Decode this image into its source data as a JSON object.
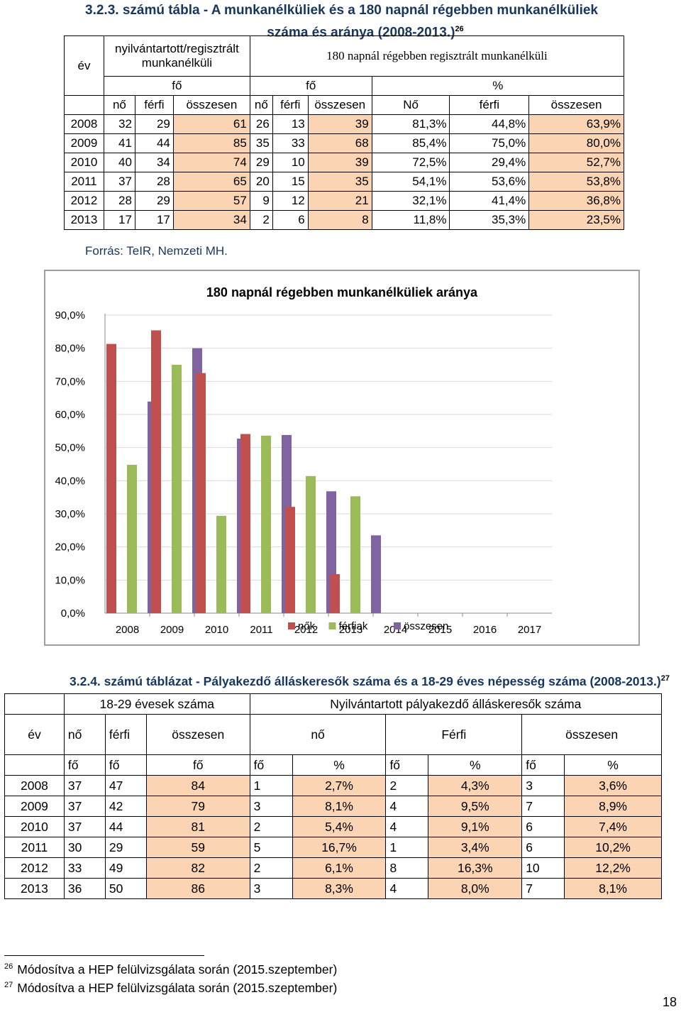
{
  "table1": {
    "title_line1": "3.2.3. számú tábla - A munkanélküliek és a 180 napnál régebben munkanélküliek",
    "title_line2": "száma és aránya (2008-2013.)",
    "title_footnote": "26",
    "col_year": "év",
    "group1": "nyilvántartott/regisztrált munkanélküli",
    "group2": "180 napnál régebben regisztrált munkanélküli",
    "unit_fo1": "fő",
    "unit_fo2": "fő",
    "unit_pct": "%",
    "subheaders": [
      "nő",
      "férfi",
      "összesen",
      "nő",
      "férfi",
      "összesen",
      "Nő",
      "férfi",
      "összesen"
    ],
    "rows": [
      [
        "2008",
        "32",
        "29",
        "61",
        "26",
        "13",
        "39",
        "81,3%",
        "44,8%",
        "63,9%"
      ],
      [
        "2009",
        "41",
        "44",
        "85",
        "35",
        "33",
        "68",
        "85,4%",
        "75,0%",
        "80,0%"
      ],
      [
        "2010",
        "40",
        "34",
        "74",
        "29",
        "10",
        "39",
        "72,5%",
        "29,4%",
        "52,7%"
      ],
      [
        "2011",
        "37",
        "28",
        "65",
        "20",
        "15",
        "35",
        "54,1%",
        "53,6%",
        "53,8%"
      ],
      [
        "2012",
        "28",
        "29",
        "57",
        "9",
        "12",
        "21",
        "32,1%",
        "41,4%",
        "36,8%"
      ],
      [
        "2013",
        "17",
        "17",
        "34",
        "2",
        "6",
        "8",
        "11,8%",
        "35,3%",
        "23,5%"
      ]
    ],
    "source": "Forrás: TeIR, Nemzeti MH."
  },
  "chart_data": {
    "type": "bar",
    "title": "180 napnál régebben munkanélküliek aránya",
    "categories": [
      "2008",
      "2009",
      "2010",
      "2011",
      "2012",
      "2013",
      "2014",
      "2015",
      "2016",
      "2017"
    ],
    "series": [
      {
        "name": "nők",
        "color": "#c0504d",
        "values": [
          81.3,
          85.4,
          72.5,
          54.1,
          32.1,
          11.8,
          null,
          null,
          null,
          null
        ]
      },
      {
        "name": "férfiak",
        "color": "#9bbb59",
        "values": [
          44.8,
          75.0,
          29.4,
          53.6,
          41.4,
          35.3,
          null,
          null,
          null,
          null
        ]
      },
      {
        "name": "összesen",
        "color": "#8064a2",
        "values": [
          63.9,
          80.0,
          52.7,
          53.8,
          36.8,
          23.5,
          null,
          null,
          null,
          null
        ]
      }
    ],
    "yticks": [
      "0,0%",
      "10,0%",
      "20,0%",
      "30,0%",
      "40,0%",
      "50,0%",
      "60,0%",
      "70,0%",
      "80,0%",
      "90,0%"
    ],
    "ylim": [
      0,
      90
    ],
    "grid": true,
    "legend": "bottom"
  },
  "table2": {
    "title": "3.2.4. számú táblázat - Pályakezdő álláskeresők száma és a 18-29 éves népesség száma (2008-2013.)",
    "title_footnote": "27",
    "col_year": "év",
    "group1": "18-29 évesek száma",
    "group2": "Nyilvántartott pályakezdő álláskeresők száma",
    "sub1": [
      "nő",
      "férfi",
      "összesen"
    ],
    "sub2": [
      "nő",
      "Férfi",
      "összesen"
    ],
    "units": [
      "fő",
      "fő",
      "fő",
      "fő",
      "%",
      "fő",
      "%",
      "fő",
      "%"
    ],
    "rows": [
      [
        "2008",
        "37",
        "47",
        "84",
        "1",
        "2,7%",
        "2",
        "4,3%",
        "3",
        "3,6%"
      ],
      [
        "2009",
        "37",
        "42",
        "79",
        "3",
        "8,1%",
        "4",
        "9,5%",
        "7",
        "8,9%"
      ],
      [
        "2010",
        "37",
        "44",
        "81",
        "2",
        "5,4%",
        "4",
        "9,1%",
        "6",
        "7,4%"
      ],
      [
        "2011",
        "30",
        "29",
        "59",
        "5",
        "16,7%",
        "1",
        "3,4%",
        "6",
        "10,2%"
      ],
      [
        "2012",
        "33",
        "49",
        "82",
        "2",
        "6,1%",
        "8",
        "16,3%",
        "10",
        "12,2%"
      ],
      [
        "2013",
        "36",
        "50",
        "86",
        "3",
        "8,3%",
        "4",
        "8,0%",
        "7",
        "8,1%"
      ]
    ]
  },
  "footnotes": [
    {
      "num": "26",
      "text": "Módosítva a HEP felülvizsgálata során (2015.szeptember)"
    },
    {
      "num": "27",
      "text": "Módosítva a HEP felülvizsgálata során (2015.szeptember)"
    }
  ],
  "page_number": "18"
}
